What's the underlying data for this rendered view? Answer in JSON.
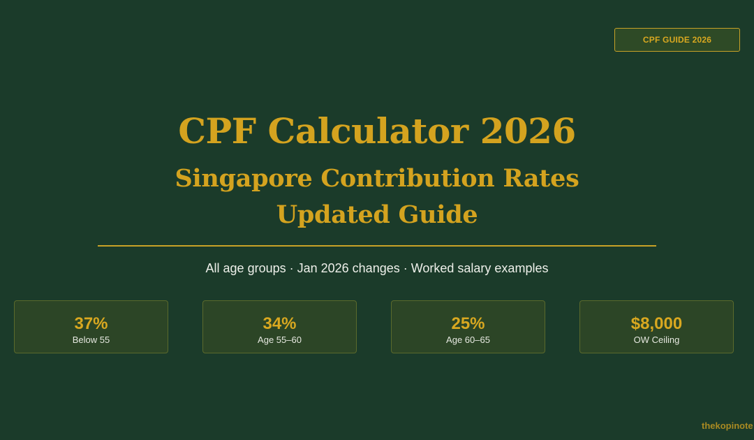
{
  "badge": "CPF GUIDE 2026",
  "header": {
    "title": "CPF Calculator 2026",
    "subtitle_lines": [
      "Singapore Contribution Rates",
      "Updated Guide"
    ]
  },
  "tagline": "All age groups · Jan 2026 changes · Worked salary examples",
  "stats": [
    {
      "value": "37%",
      "label": "Below 55"
    },
    {
      "value": "34%",
      "label": "Age 55–60"
    },
    {
      "value": "25%",
      "label": "Age 60–65"
    },
    {
      "value": "$8,000",
      "label": "OW Ceiling"
    }
  ],
  "watermark": "thekopinote"
}
